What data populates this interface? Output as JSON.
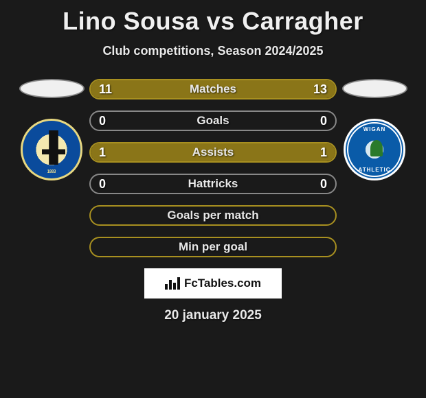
{
  "title": "Lino Sousa vs Carragher",
  "subtitle": "Club competitions, Season 2024/2025",
  "date": "20 january 2025",
  "watermark": "FcTables.com",
  "colors": {
    "accent": "#a89020",
    "accent_fill": "#8a7518",
    "border_default": "#888888",
    "background": "#1a1a1a"
  },
  "player_left": {
    "name": "Lino Sousa",
    "club": "Bristol Rovers",
    "badge_text": "1883"
  },
  "player_right": {
    "name": "Carragher",
    "club": "Wigan Athletic",
    "badge_top": "WIGAN",
    "badge_bottom": "ATHLETIC"
  },
  "stats": [
    {
      "label": "Matches",
      "left_value": "11",
      "right_value": "13",
      "left_pct": 45.8,
      "right_pct": 54.2,
      "left_color": "#8a7518",
      "right_color": "#8a7518",
      "border_color": "#a89020",
      "show_values": true
    },
    {
      "label": "Goals",
      "left_value": "0",
      "right_value": "0",
      "left_pct": 0,
      "right_pct": 0,
      "left_color": "#8a7518",
      "right_color": "#8a7518",
      "border_color": "#888888",
      "show_values": true
    },
    {
      "label": "Assists",
      "left_value": "1",
      "right_value": "1",
      "left_pct": 50,
      "right_pct": 50,
      "left_color": "#8a7518",
      "right_color": "#8a7518",
      "border_color": "#a89020",
      "show_values": true
    },
    {
      "label": "Hattricks",
      "left_value": "0",
      "right_value": "0",
      "left_pct": 0,
      "right_pct": 0,
      "left_color": "#8a7518",
      "right_color": "#8a7518",
      "border_color": "#888888",
      "show_values": true
    },
    {
      "label": "Goals per match",
      "left_value": "",
      "right_value": "",
      "left_pct": 0,
      "right_pct": 0,
      "left_color": "#8a7518",
      "right_color": "#8a7518",
      "border_color": "#a89020",
      "show_values": false
    },
    {
      "label": "Min per goal",
      "left_value": "",
      "right_value": "",
      "left_pct": 0,
      "right_pct": 0,
      "left_color": "#8a7518",
      "right_color": "#8a7518",
      "border_color": "#a89020",
      "show_values": false
    }
  ]
}
